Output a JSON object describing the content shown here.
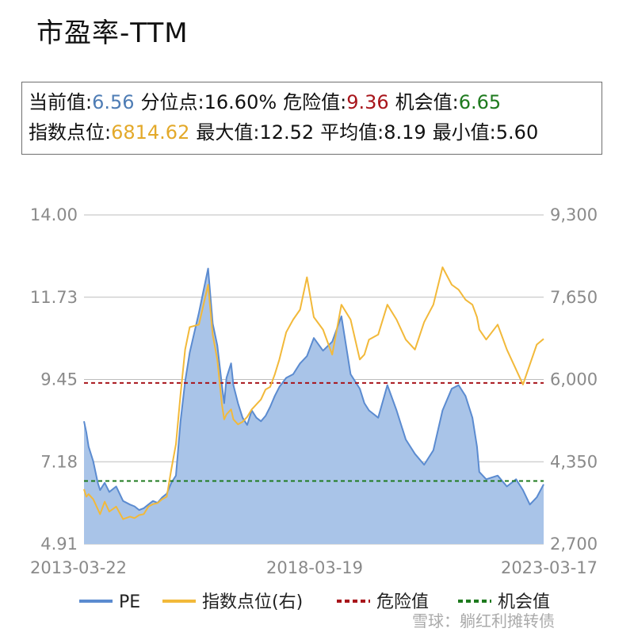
{
  "title": "市盈率-TTM",
  "stats": {
    "current_label": "当前值:",
    "current_value": "6.56",
    "percentile_label": "分位点:",
    "percentile_value": "16.60%",
    "danger_label": "危险值:",
    "danger_value": "9.36",
    "opportunity_label": "机会值:",
    "opportunity_value": "6.65",
    "index_label": "指数点位:",
    "index_value": "6814.62",
    "max_label": "最大值:",
    "max_value": "12.52",
    "avg_label": "平均值:",
    "avg_value": "8.19",
    "min_label": "最小值:",
    "min_value": "5.60"
  },
  "colors": {
    "pe_line": "#5b8bd0",
    "pe_fill": "#a9c4e8",
    "index_line": "#f2b93a",
    "danger": "#a8151b",
    "opportunity": "#1e7a1e",
    "current_value": "#4f7db5",
    "index_value": "#e3a92a",
    "grid": "#bdbdbd",
    "tick": "#8a8a8a"
  },
  "watermark": "雪球：躺红利摊转债",
  "chart_data": {
    "type": "line",
    "x_tick_labels": [
      "2013-03-22",
      "2018-03-19",
      "2023-03-17"
    ],
    "y_left": {
      "ticks": [
        "4.91",
        "7.18",
        "9.45",
        "11.73",
        "14.00"
      ],
      "range": [
        4.91,
        14.0
      ]
    },
    "y_right": {
      "ticks": [
        "2,700",
        "4,350",
        "6,000",
        "7,650",
        "9,300"
      ],
      "range": [
        2700,
        9300
      ]
    },
    "x_range": [
      0,
      10
    ],
    "legend_position": "bottom",
    "grid": true,
    "series": [
      {
        "name": "PE",
        "axis": "left",
        "kind": "area",
        "x": [
          0.0,
          0.05,
          0.1,
          0.2,
          0.3,
          0.35,
          0.45,
          0.55,
          0.7,
          0.85,
          1.0,
          1.1,
          1.2,
          1.3,
          1.4,
          1.5,
          1.6,
          1.7,
          1.8,
          1.9,
          2.0,
          2.1,
          2.2,
          2.3,
          2.5,
          2.7,
          2.8,
          2.9,
          3.0,
          3.05,
          3.1,
          3.2,
          3.25,
          3.35,
          3.45,
          3.55,
          3.65,
          3.75,
          3.85,
          3.95,
          4.05,
          4.15,
          4.25,
          4.4,
          4.55,
          4.7,
          4.85,
          5.0,
          5.2,
          5.4,
          5.6,
          5.8,
          6.0,
          6.1,
          6.2,
          6.4,
          6.6,
          6.8,
          7.0,
          7.2,
          7.4,
          7.6,
          7.8,
          8.0,
          8.15,
          8.3,
          8.45,
          8.55,
          8.6,
          8.75,
          9.0,
          9.2,
          9.4,
          9.55,
          9.7,
          9.85,
          10.0
        ],
        "values": [
          8.3,
          8.0,
          7.6,
          7.2,
          6.6,
          6.4,
          6.6,
          6.35,
          6.5,
          6.1,
          6.0,
          5.95,
          5.85,
          5.9,
          6.0,
          6.1,
          6.05,
          6.2,
          6.3,
          6.6,
          6.8,
          8.3,
          9.4,
          10.2,
          11.3,
          12.52,
          11.0,
          10.4,
          9.3,
          8.8,
          9.5,
          9.9,
          9.3,
          8.8,
          8.4,
          8.2,
          8.6,
          8.4,
          8.3,
          8.45,
          8.7,
          9.0,
          9.25,
          9.5,
          9.6,
          9.9,
          10.1,
          10.6,
          10.25,
          10.5,
          11.2,
          9.6,
          9.2,
          8.8,
          8.6,
          8.4,
          9.3,
          8.6,
          7.8,
          7.4,
          7.1,
          7.5,
          8.6,
          9.2,
          9.3,
          9.0,
          8.4,
          7.6,
          6.9,
          6.7,
          6.8,
          6.5,
          6.7,
          6.4,
          6.0,
          6.2,
          6.56
        ]
      },
      {
        "name": "指数点位(右)",
        "axis": "right",
        "kind": "line",
        "x": [
          0.0,
          0.05,
          0.1,
          0.2,
          0.3,
          0.35,
          0.45,
          0.55,
          0.7,
          0.85,
          1.0,
          1.1,
          1.2,
          1.3,
          1.4,
          1.5,
          1.6,
          1.7,
          1.8,
          1.9,
          2.0,
          2.1,
          2.2,
          2.3,
          2.5,
          2.7,
          2.8,
          2.9,
          3.0,
          3.05,
          3.1,
          3.2,
          3.25,
          3.35,
          3.45,
          3.55,
          3.65,
          3.75,
          3.85,
          3.95,
          4.05,
          4.15,
          4.25,
          4.4,
          4.55,
          4.7,
          4.85,
          5.0,
          5.2,
          5.4,
          5.6,
          5.8,
          6.0,
          6.1,
          6.2,
          6.4,
          6.6,
          6.8,
          7.0,
          7.2,
          7.4,
          7.6,
          7.8,
          8.0,
          8.15,
          8.3,
          8.45,
          8.55,
          8.6,
          8.75,
          9.0,
          9.2,
          9.4,
          9.55,
          9.7,
          9.85,
          10.0
        ],
        "values": [
          3800,
          3650,
          3700,
          3600,
          3400,
          3300,
          3550,
          3350,
          3450,
          3200,
          3250,
          3220,
          3280,
          3300,
          3450,
          3500,
          3520,
          3600,
          3650,
          4200,
          4700,
          5700,
          6600,
          7050,
          7100,
          7900,
          6900,
          6400,
          5500,
          5200,
          5300,
          5400,
          5200,
          5100,
          5150,
          5250,
          5400,
          5500,
          5600,
          5800,
          5850,
          6100,
          6400,
          6950,
          7200,
          7400,
          8050,
          7250,
          7000,
          6500,
          7500,
          7200,
          6400,
          6500,
          6800,
          6900,
          7500,
          7200,
          6800,
          6600,
          7150,
          7500,
          8250,
          7900,
          7800,
          7600,
          7500,
          7250,
          7000,
          6800,
          7100,
          6600,
          6200,
          5900,
          6300,
          6700,
          6814.62
        ]
      },
      {
        "name": "危险值",
        "axis": "left",
        "kind": "hline",
        "value": 9.36
      },
      {
        "name": "机会值",
        "axis": "left",
        "kind": "hline",
        "value": 6.65
      }
    ]
  }
}
